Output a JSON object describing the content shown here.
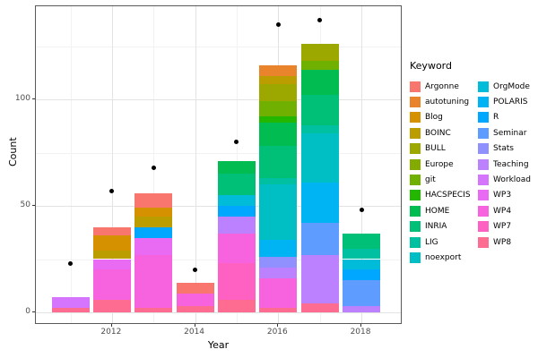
{
  "chart_data": {
    "type": "bar",
    "stacked": true,
    "title": "",
    "xlabel": "Year",
    "ylabel": "Count",
    "x_tick_labels": [
      "2012",
      "2014",
      "2016",
      "2018"
    ],
    "y_tick_labels": [
      "0",
      "50",
      "100"
    ],
    "y_major_breaks": [
      0,
      50,
      100
    ],
    "y_minor_breaks": [
      25,
      75,
      125
    ],
    "years": [
      2011,
      2012,
      2013,
      2014,
      2015,
      2016,
      2017,
      2018
    ],
    "ylim": [
      0,
      143
    ],
    "grid": true,
    "legend_position": "right",
    "legend_title": "Keyword",
    "point_color": "#000000",
    "keywords": [
      {
        "name": "Argonne",
        "color": "#F8766D"
      },
      {
        "name": "autotuning",
        "color": "#E9842C"
      },
      {
        "name": "Blog",
        "color": "#D69100"
      },
      {
        "name": "BOINC",
        "color": "#BC9D00"
      },
      {
        "name": "BULL",
        "color": "#9CA700"
      },
      {
        "name": "Europe",
        "color": "#84AC00"
      },
      {
        "name": "git",
        "color": "#6FB000"
      },
      {
        "name": "HACSPECIS",
        "color": "#24B700"
      },
      {
        "name": "HOME",
        "color": "#00BC51"
      },
      {
        "name": "INRIA",
        "color": "#00C078"
      },
      {
        "name": "LIG",
        "color": "#00C0A2"
      },
      {
        "name": "noexport",
        "color": "#00BFC4"
      },
      {
        "name": "OrgMode",
        "color": "#00BCD8"
      },
      {
        "name": "POLARIS",
        "color": "#00B3F2"
      },
      {
        "name": "R",
        "color": "#00A7FF"
      },
      {
        "name": "Seminar",
        "color": "#5E9DFF"
      },
      {
        "name": "Stats",
        "color": "#9090FF"
      },
      {
        "name": "Teaching",
        "color": "#BC81FF"
      },
      {
        "name": "Workload",
        "color": "#D575FE"
      },
      {
        "name": "WP3",
        "color": "#E96BF3"
      },
      {
        "name": "WP4",
        "color": "#F763DF"
      },
      {
        "name": "WP7",
        "color": "#FF61C3"
      },
      {
        "name": "WP8",
        "color": "#FF6C91"
      }
    ],
    "bars": [
      {
        "year": 2011,
        "total": 7,
        "segments": [
          {
            "keyword": "Workload",
            "value": 5
          },
          {
            "keyword": "WP8",
            "value": 2
          }
        ]
      },
      {
        "year": 2012,
        "total": 40,
        "segments": [
          {
            "keyword": "Argonne",
            "value": 4
          },
          {
            "keyword": "Blog",
            "value": 7
          },
          {
            "keyword": "BOINC",
            "value": 4
          },
          {
            "keyword": "WP3",
            "value": 5
          },
          {
            "keyword": "WP4",
            "value": 14
          },
          {
            "keyword": "WP8",
            "value": 6
          }
        ]
      },
      {
        "year": 2013,
        "total": 56,
        "segments": [
          {
            "keyword": "Argonne",
            "value": 7
          },
          {
            "keyword": "Blog",
            "value": 4
          },
          {
            "keyword": "BOINC",
            "value": 5
          },
          {
            "keyword": "R",
            "value": 5
          },
          {
            "keyword": "WP3",
            "value": 8
          },
          {
            "keyword": "WP4",
            "value": 25
          },
          {
            "keyword": "WP8",
            "value": 2
          }
        ]
      },
      {
        "year": 2014,
        "total": 14,
        "segments": [
          {
            "keyword": "Argonne",
            "value": 5
          },
          {
            "keyword": "WP4",
            "value": 6
          },
          {
            "keyword": "WP8",
            "value": 3
          }
        ]
      },
      {
        "year": 2015,
        "total": 71,
        "segments": [
          {
            "keyword": "HOME",
            "value": 6
          },
          {
            "keyword": "INRIA",
            "value": 10
          },
          {
            "keyword": "OrgMode",
            "value": 5
          },
          {
            "keyword": "R",
            "value": 5
          },
          {
            "keyword": "Teaching",
            "value": 8
          },
          {
            "keyword": "WP4",
            "value": 14
          },
          {
            "keyword": "WP7",
            "value": 17
          },
          {
            "keyword": "WP8",
            "value": 6
          }
        ]
      },
      {
        "year": 2016,
        "total": 116,
        "segments": [
          {
            "keyword": "autotuning",
            "value": 5
          },
          {
            "keyword": "BOINC",
            "value": 4
          },
          {
            "keyword": "BULL",
            "value": 8
          },
          {
            "keyword": "git",
            "value": 7
          },
          {
            "keyword": "HACSPECIS",
            "value": 3
          },
          {
            "keyword": "HOME",
            "value": 11
          },
          {
            "keyword": "INRIA",
            "value": 15
          },
          {
            "keyword": "LIG",
            "value": 3
          },
          {
            "keyword": "noexport",
            "value": 26
          },
          {
            "keyword": "POLARIS",
            "value": 8
          },
          {
            "keyword": "Stats",
            "value": 5
          },
          {
            "keyword": "Teaching",
            "value": 5
          },
          {
            "keyword": "WP4",
            "value": 14
          },
          {
            "keyword": "WP8",
            "value": 2
          }
        ]
      },
      {
        "year": 2017,
        "total": 126,
        "segments": [
          {
            "keyword": "BULL",
            "value": 8
          },
          {
            "keyword": "git",
            "value": 4
          },
          {
            "keyword": "HOME",
            "value": 12
          },
          {
            "keyword": "INRIA",
            "value": 14
          },
          {
            "keyword": "LIG",
            "value": 4
          },
          {
            "keyword": "noexport",
            "value": 23
          },
          {
            "keyword": "POLARIS",
            "value": 19
          },
          {
            "keyword": "Seminar",
            "value": 15
          },
          {
            "keyword": "Teaching",
            "value": 23
          },
          {
            "keyword": "WP8",
            "value": 4
          }
        ]
      },
      {
        "year": 2018,
        "total": 37,
        "segments": [
          {
            "keyword": "INRIA",
            "value": 7
          },
          {
            "keyword": "LIG",
            "value": 5
          },
          {
            "keyword": "OrgMode",
            "value": 5
          },
          {
            "keyword": "R",
            "value": 5
          },
          {
            "keyword": "Seminar",
            "value": 12
          },
          {
            "keyword": "Teaching",
            "value": 3
          }
        ]
      }
    ],
    "points": [
      {
        "year": 2011,
        "value": 23
      },
      {
        "year": 2012,
        "value": 57
      },
      {
        "year": 2013,
        "value": 68
      },
      {
        "year": 2014,
        "value": 20
      },
      {
        "year": 2015,
        "value": 80
      },
      {
        "year": 2016,
        "value": 135
      },
      {
        "year": 2017,
        "value": 137
      },
      {
        "year": 2018,
        "value": 48
      }
    ]
  }
}
